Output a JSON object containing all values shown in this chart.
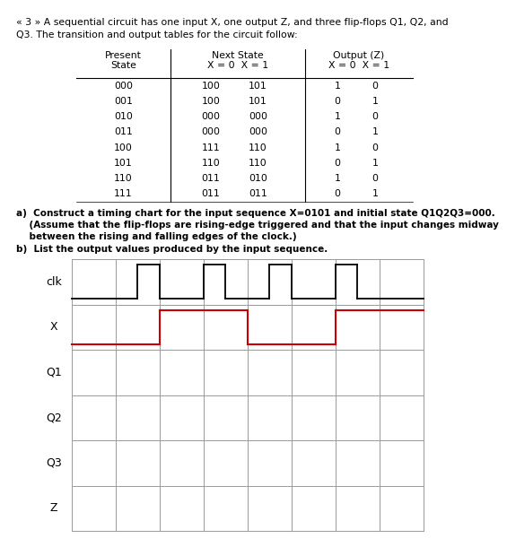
{
  "title_line1": "« 3 » A sequential circuit has one input X, one output Z, and three flip-flops Q1, Q2, and",
  "title_line2": "Q3. The transition and output tables for the circuit follow:",
  "table_rows": [
    [
      "000",
      "100",
      "101",
      "1",
      "0"
    ],
    [
      "001",
      "100",
      "101",
      "0",
      "1"
    ],
    [
      "010",
      "000",
      "000",
      "1",
      "0"
    ],
    [
      "011",
      "000",
      "000",
      "0",
      "1"
    ],
    [
      "100",
      "111",
      "110",
      "1",
      "0"
    ],
    [
      "101",
      "110",
      "110",
      "0",
      "1"
    ],
    [
      "110",
      "011",
      "010",
      "1",
      "0"
    ],
    [
      "111",
      "011",
      "011",
      "0",
      "1"
    ]
  ],
  "parts_a_line1": "a)  Construct a timing chart for the input sequence X=0101 and initial state Q1Q2Q3=000.",
  "parts_a_line2": "    (Assume that the flip-flops are rising-edge triggered and that the input changes midway",
  "parts_a_line3": "    between the rising and falling edges of the clock.)",
  "parts_b": "b)  List the output values produced by the input sequence.",
  "signal_labels": [
    "clk",
    "X",
    "Q1",
    "Q2",
    "Q3",
    "Z"
  ],
  "clk_color": "#000000",
  "x_signal_color": "#cc0000",
  "grid_color": "#999999",
  "bg_color": "#ffffff",
  "num_cols": 8,
  "num_rows": 6,
  "header_ps": "Present\nState",
  "header_ns": "Next State",
  "header_ns2": "X = 0  X = 1",
  "header_out": "Output (Z)",
  "header_out2": "X = 0  X = 1"
}
